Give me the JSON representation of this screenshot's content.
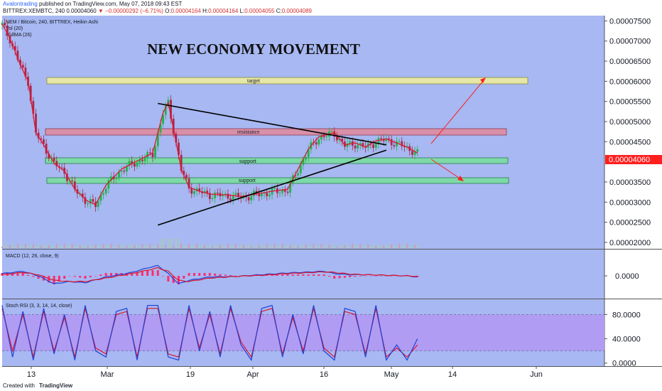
{
  "header": {
    "author": "Avalontrading",
    "published": "published on TradingView.com, May 07, 2018 09:43 EST",
    "symbol": "BITTREX:XEMBTC, 240",
    "price": "0.00004060",
    "change_arrow": "▼",
    "change": "−0.00000292 (−6.71%)",
    "o_label": "O:",
    "o": "0.00004164",
    "h_label": "H:",
    "h": "0.00004164",
    "l_label": "L:",
    "l": "0.00004055",
    "c_label": "C:",
    "c": "0.00004089"
  },
  "legend": {
    "title": "NEM / Bitcoin, 240, BITTREX, Heikin Ashi",
    "vol": "Vol (20)",
    "hullma": "HullMA (26)"
  },
  "chart_title": "NEW ECONOMY MOVEMENT",
  "zones": {
    "target": "target",
    "resistance": "resistance",
    "support1": "support",
    "support2": "support"
  },
  "macd_label": "MACD (12, 26, close, 9)",
  "stoch_label": "Stoch RSI (3, 3, 14, 14, close)",
  "current_price_tag": "0.00004060",
  "footer": {
    "created": "Created with",
    "brand": "TradingView"
  },
  "colors": {
    "background": "#a7b8f2",
    "candle_up": "#22b14c",
    "candle_down": "#b0264a",
    "hullma": "#e0152b",
    "target_zone": "#e6e6a6",
    "resistance_zone": "#d98fa8",
    "support_zone": "#7ed9a8",
    "macd_line": "#1e3fd6",
    "macd_signal": "#e0152b",
    "macd_hist": "#ff2d6e",
    "stoch_k": "#1e3fd6",
    "stoch_d": "#e0152b",
    "stoch_band": "#b09cf2",
    "price_tag": "#ff1f1f"
  },
  "chart_data": [
    {
      "type": "line",
      "title": "NEM / Bitcoin, 240, BITTREX, Heikin Ashi",
      "x_ticks": [
        "13",
        "Mar",
        "19",
        "Apr",
        "16",
        "May",
        "14",
        "Jun"
      ],
      "y_ticks": [
        "0.00007500",
        "0.00007000",
        "0.00006500",
        "0.00006000",
        "0.00005500",
        "0.00005000",
        "0.00004500",
        "0.00003500",
        "0.00003000",
        "0.00002500",
        "0.00002000"
      ],
      "ylim": [
        1.84e-05,
        7.63e-05
      ],
      "x": [
        0,
        3,
        6,
        9,
        10,
        13,
        16,
        20,
        24,
        28,
        33,
        36,
        40,
        46,
        52,
        58,
        62,
        64,
        66,
        69,
        72,
        76,
        80,
        86,
        92,
        98,
        104,
        110,
        114,
        118,
        122,
        128,
        132,
        136,
        140,
        144,
        148,
        152,
        156,
        160,
        162
      ],
      "series": [
        {
          "values": [
            7.4e-05,
            7.05e-05,
            6.55e-05,
            6.1e-05,
            6e-05,
            4.7e-05,
            4.4e-05,
            3.95e-05,
            3.75e-05,
            3.3e-05,
            3e-05,
            2.92e-05,
            3.4e-05,
            3.8e-05,
            4e-05,
            4.2e-05,
            5.2e-05,
            5.45e-05,
            4.8e-05,
            3.8e-05,
            3.35e-05,
            3.25e-05,
            3.18e-05,
            3.16e-05,
            3.12e-05,
            3.18e-05,
            3.25e-05,
            3.3e-05,
            3.8e-05,
            4.3e-05,
            4.6e-05,
            4.7e-05,
            4.4e-05,
            4.45e-05,
            4.35e-05,
            4.5e-05,
            4.55e-05,
            4.45e-05,
            4.35e-05,
            4.2e-05,
            4.06e-05
          ]
        }
      ],
      "annotations": [
        {
          "label": "target",
          "y_range": [
            5.98e-05,
            6.08e-05
          ]
        },
        {
          "label": "resistance",
          "y_range": [
            4.67e-05,
            4.77e-05
          ]
        },
        {
          "label": "support",
          "y_range": [
            3.98e-05,
            4.06e-05
          ]
        },
        {
          "label": "support",
          "y_range": [
            3.47e-05,
            3.55e-05
          ]
        },
        {
          "label": "",
          "type": "trendline",
          "from": [
            60,
            5.45e-05
          ],
          "to": [
            148,
            4.42e-05
          ]
        },
        {
          "label": "",
          "type": "trendline",
          "from": [
            60,
            2.43e-05
          ],
          "to": [
            148,
            4.29e-05
          ]
        }
      ]
    },
    {
      "type": "line",
      "title": "MACD (12, 26, close, 9)",
      "y_ticks": [
        "0.0000"
      ],
      "x": [
        0,
        8,
        14,
        20,
        26,
        32,
        40,
        50,
        56,
        60,
        64,
        68,
        72,
        80,
        90,
        100,
        110,
        120,
        124,
        128,
        134,
        140,
        148,
        156,
        160
      ],
      "series": [
        {
          "name": "MACD",
          "values": [
            0.2,
            0.4,
            0.0,
            -0.7,
            -0.5,
            -0.6,
            -0.1,
            0.3,
            0.7,
            0.9,
            0.2,
            -0.7,
            -0.4,
            -0.1,
            -0.05,
            0.1,
            0.25,
            0.35,
            0.4,
            0.2,
            0.1,
            0.1,
            0.05,
            0.0,
            -0.1
          ]
        },
        {
          "name": "Signal",
          "values": [
            0.1,
            0.3,
            0.1,
            -0.4,
            -0.5,
            -0.5,
            -0.2,
            0.2,
            0.5,
            0.7,
            0.4,
            -0.4,
            -0.5,
            -0.2,
            -0.05,
            0.05,
            0.2,
            0.3,
            0.35,
            0.3,
            0.15,
            0.1,
            0.05,
            0.0,
            -0.05
          ]
        }
      ]
    },
    {
      "type": "line",
      "title": "Stoch RSI (3, 3, 14, 14, close)",
      "y_ticks": [
        "80.0000",
        "40.0000",
        "0.0000"
      ],
      "ylim": [
        -5,
        105
      ],
      "band": [
        20,
        80
      ],
      "x": [
        0,
        4,
        8,
        12,
        16,
        20,
        24,
        28,
        32,
        36,
        40,
        44,
        48,
        52,
        56,
        60,
        64,
        68,
        72,
        76,
        80,
        84,
        88,
        92,
        96,
        100,
        104,
        108,
        112,
        116,
        120,
        124,
        128,
        132,
        136,
        140,
        144,
        148,
        152,
        156,
        160
      ],
      "series": [
        {
          "name": "K",
          "values": [
            95,
            10,
            85,
            5,
            90,
            15,
            80,
            5,
            95,
            20,
            10,
            85,
            90,
            5,
            95,
            95,
            10,
            5,
            95,
            20,
            85,
            10,
            95,
            30,
            5,
            90,
            95,
            10,
            80,
            15,
            95,
            20,
            5,
            90,
            85,
            10,
            95,
            5,
            30,
            5,
            40
          ]
        },
        {
          "name": "D",
          "values": [
            90,
            20,
            80,
            10,
            85,
            20,
            75,
            10,
            90,
            25,
            15,
            80,
            85,
            10,
            90,
            90,
            15,
            10,
            90,
            25,
            80,
            15,
            90,
            35,
            10,
            85,
            90,
            15,
            75,
            20,
            90,
            25,
            10,
            85,
            80,
            15,
            90,
            10,
            25,
            10,
            30
          ]
        }
      ]
    }
  ]
}
